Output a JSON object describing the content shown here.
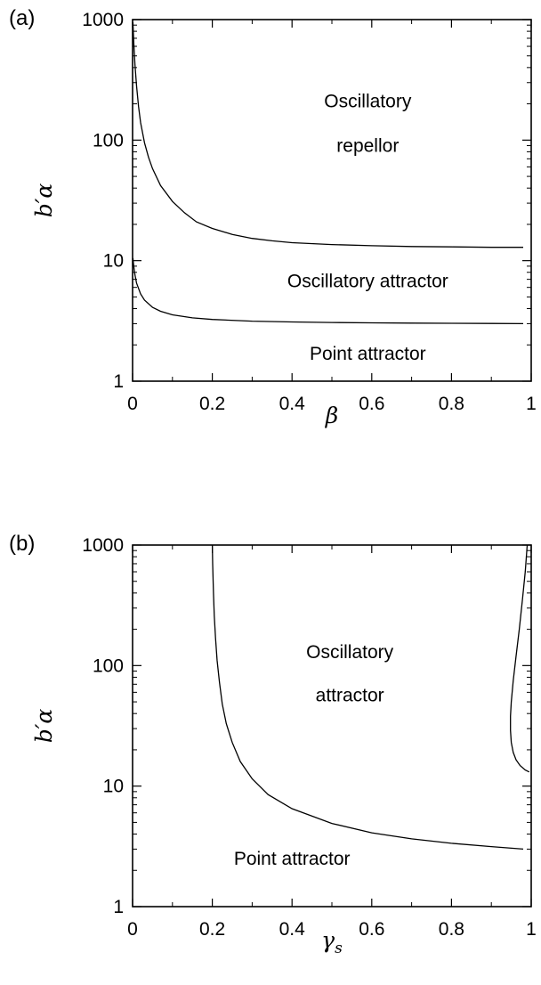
{
  "chart_data": [
    {
      "panel_label": "(a)",
      "type": "line",
      "xlabel": "β",
      "ylabel": "b′α",
      "xlim": [
        0,
        1
      ],
      "ylim": [
        1,
        1000
      ],
      "yscale": "log",
      "xticks": [
        "0",
        "0.2",
        "0.4",
        "0.6",
        "0.8",
        "1"
      ],
      "yticks": [
        "1",
        "10",
        "100",
        "1000"
      ],
      "grid": false,
      "series": [
        {
          "x": [
            0.001,
            0.003,
            0.006,
            0.01,
            0.015,
            0.02,
            0.03,
            0.04,
            0.05,
            0.07,
            0.1,
            0.13,
            0.16,
            0.2,
            0.25,
            0.3,
            0.35,
            0.4,
            0.5,
            0.6,
            0.7,
            0.8,
            0.9,
            0.98
          ],
          "y": [
            950,
            650,
            420,
            280,
            190,
            140,
            95,
            72,
            58,
            42,
            31,
            25,
            21,
            18.5,
            16.5,
            15.3,
            14.6,
            14.1,
            13.6,
            13.3,
            13.1,
            13.0,
            12.9,
            12.9
          ]
        },
        {
          "x": [
            0.001,
            0.003,
            0.006,
            0.01,
            0.02,
            0.03,
            0.05,
            0.07,
            0.1,
            0.15,
            0.2,
            0.3,
            0.4,
            0.5,
            0.6,
            0.7,
            0.8,
            0.9,
            0.98
          ],
          "y": [
            10.5,
            9.0,
            7.6,
            6.5,
            5.3,
            4.7,
            4.1,
            3.8,
            3.55,
            3.35,
            3.25,
            3.15,
            3.1,
            3.07,
            3.05,
            3.03,
            3.02,
            3.01,
            3.0
          ]
        }
      ],
      "annotations": [
        {
          "text": "Oscillatory",
          "x": 0.59,
          "y": 210
        },
        {
          "text": "repellor",
          "x": 0.59,
          "y": 90
        },
        {
          "text": "Oscillatory attractor",
          "x": 0.59,
          "y": 6.8
        },
        {
          "text": "Point attractor",
          "x": 0.59,
          "y": 1.7
        }
      ]
    },
    {
      "panel_label": "(b)",
      "type": "line",
      "xlabel": "γs",
      "xlabel_main": "γ",
      "xlabel_sub": "s",
      "ylabel": "b′α",
      "xlim": [
        0,
        1
      ],
      "ylim": [
        1,
        1000
      ],
      "yscale": "log",
      "xticks": [
        "0",
        "0.2",
        "0.4",
        "0.6",
        "0.8",
        "1"
      ],
      "yticks": [
        "1",
        "10",
        "100",
        "1000"
      ],
      "grid": false,
      "series": [
        {
          "x": [
            0.2,
            0.201,
            0.203,
            0.205,
            0.208,
            0.212,
            0.218,
            0.225,
            0.235,
            0.25,
            0.27,
            0.3,
            0.34,
            0.4,
            0.5,
            0.6,
            0.7,
            0.8,
            0.9,
            0.98
          ],
          "y": [
            1000,
            700,
            400,
            260,
            170,
            110,
            72,
            48,
            33,
            23,
            16,
            11.5,
            8.5,
            6.5,
            4.9,
            4.1,
            3.65,
            3.35,
            3.15,
            3.0
          ]
        },
        {
          "x": [
            0.99,
            0.985,
            0.978,
            0.97,
            0.962,
            0.955,
            0.95,
            0.948,
            0.948,
            0.95,
            0.955,
            0.962,
            0.972,
            0.985,
            0.995
          ],
          "y": [
            1000,
            600,
            350,
            200,
            120,
            75,
            50,
            38,
            29,
            23,
            19,
            16.5,
            14.8,
            13.6,
            13.1
          ]
        }
      ],
      "annotations": [
        {
          "text": "Oscillatory",
          "x": 0.545,
          "y": 130
        },
        {
          "text": "attractor",
          "x": 0.545,
          "y": 57
        },
        {
          "text": "Point attractor",
          "x": 0.4,
          "y": 2.5
        }
      ]
    }
  ]
}
